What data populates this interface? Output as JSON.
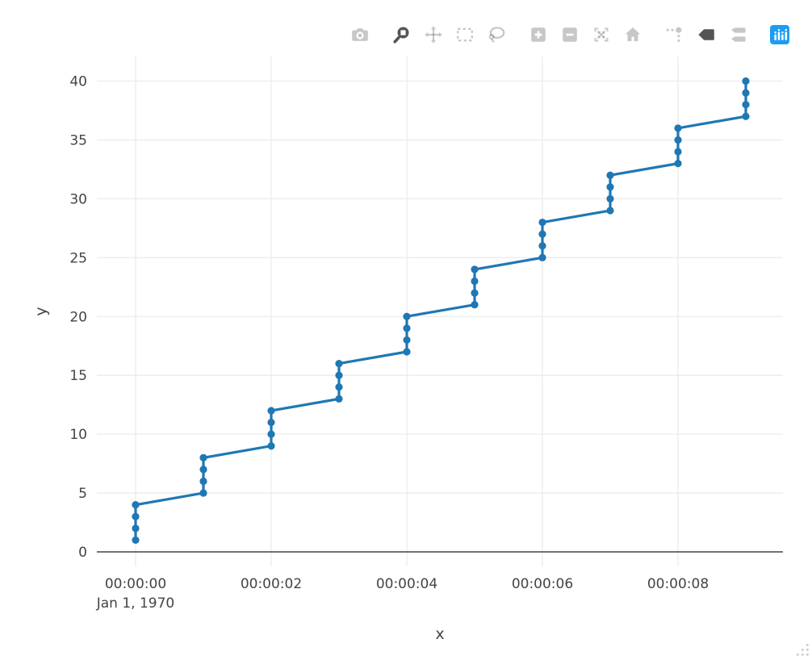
{
  "modebar": {
    "buttons": [
      {
        "icon": "camera-icon",
        "active": false,
        "new_group": false
      },
      {
        "icon": "zoom-icon",
        "active": true,
        "new_group": true
      },
      {
        "icon": "pan-icon",
        "active": false,
        "new_group": false
      },
      {
        "icon": "box-select-icon",
        "active": false,
        "new_group": false
      },
      {
        "icon": "lasso-select-icon",
        "active": false,
        "new_group": false
      },
      {
        "icon": "zoom-in-icon",
        "active": false,
        "new_group": true
      },
      {
        "icon": "zoom-out-icon",
        "active": false,
        "new_group": false
      },
      {
        "icon": "autoscale-icon",
        "active": false,
        "new_group": false
      },
      {
        "icon": "reset-axes-icon",
        "active": false,
        "new_group": false
      },
      {
        "icon": "spikelines-icon",
        "active": false,
        "new_group": true
      },
      {
        "icon": "hover-closest-icon",
        "active": true,
        "new_group": false
      },
      {
        "icon": "hover-compare-icon",
        "active": false,
        "new_group": false
      },
      {
        "icon": "plotly-logo-icon",
        "active": false,
        "new_group": true
      }
    ],
    "logo_color": "#1b9df3"
  },
  "chart_data": {
    "type": "line",
    "mode": "lines+markers",
    "title": "",
    "xlabel": "x",
    "ylabel": "y",
    "x_axis_type": "time",
    "x_date_annotation": "Jan 1, 1970",
    "x_seconds": [
      0,
      0,
      0,
      0,
      1,
      1,
      1,
      1,
      2,
      2,
      2,
      2,
      3,
      3,
      3,
      3,
      4,
      4,
      4,
      4,
      5,
      5,
      5,
      5,
      6,
      6,
      6,
      6,
      7,
      7,
      7,
      7,
      8,
      8,
      8,
      8,
      9,
      9,
      9,
      9
    ],
    "y": [
      1,
      2,
      3,
      4,
      5,
      6,
      7,
      8,
      9,
      10,
      11,
      12,
      13,
      14,
      15,
      16,
      17,
      18,
      19,
      20,
      21,
      22,
      23,
      24,
      25,
      26,
      27,
      28,
      29,
      30,
      31,
      32,
      33,
      34,
      35,
      36,
      37,
      38,
      39,
      40
    ],
    "x_ticks": [
      {
        "seconds": 0,
        "label": "00:00:00"
      },
      {
        "seconds": 2,
        "label": "00:00:02"
      },
      {
        "seconds": 4,
        "label": "00:00:04"
      },
      {
        "seconds": 6,
        "label": "00:00:06"
      },
      {
        "seconds": 8,
        "label": "00:00:08"
      }
    ],
    "y_ticks": [
      0,
      5,
      10,
      15,
      20,
      25,
      30,
      35,
      40
    ],
    "xlim_seconds": [
      -0.57,
      9.55
    ],
    "ylim": [
      -1.2,
      42.1
    ],
    "grid": true,
    "legend": false,
    "line_color": "#1f77b4",
    "marker_color": "#1f77b4",
    "grid_color": "#ebebeb",
    "zeroline_color": "#444444",
    "text_color": "#444444",
    "background": "#ffffff"
  }
}
